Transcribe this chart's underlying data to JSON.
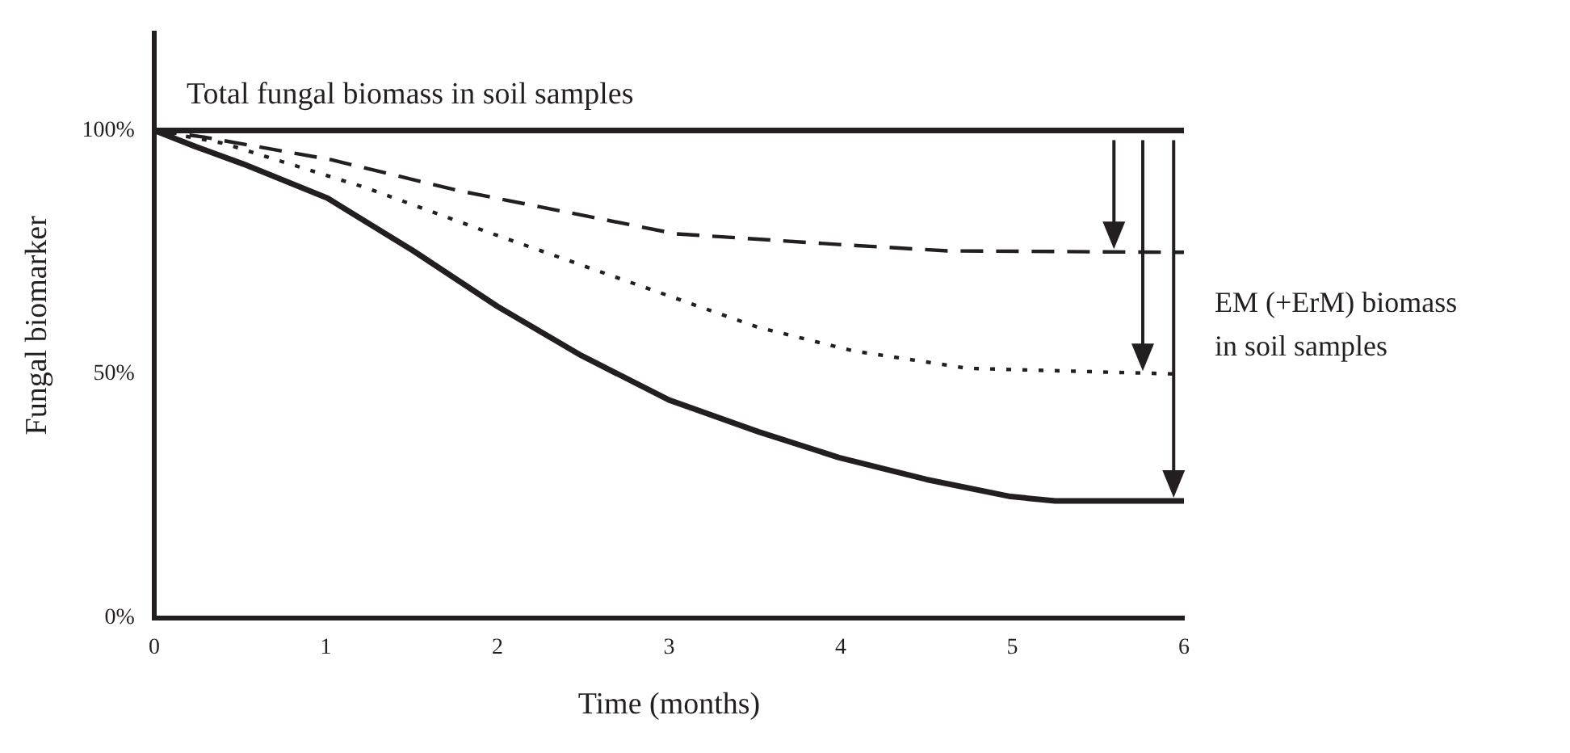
{
  "chart_data": {
    "type": "line",
    "xlabel": "Time (months)",
    "ylabel": "Fungal biomarker",
    "xlim": [
      0,
      6
    ],
    "xticks": [
      0,
      1,
      2,
      3,
      4,
      5,
      6
    ],
    "ylim": [
      0,
      120
    ],
    "yticks": [
      {
        "value": 0,
        "label": "0%"
      },
      {
        "value": 50,
        "label": "50%"
      },
      {
        "value": 100,
        "label": "100%"
      }
    ],
    "grid": false,
    "legend": false,
    "marker": "none",
    "series": [
      {
        "name": "Total fungal biomass in soil samples",
        "color": "#231f20",
        "line_style": "solid",
        "x": [
          0,
          6
        ],
        "values": [
          100,
          100
        ]
      },
      {
        "color": "#231f20",
        "line_style": "dashed",
        "x": [
          0,
          0.28,
          1.03,
          1.78,
          3.04,
          3.99,
          4.62,
          6
        ],
        "values": [
          100,
          98.7,
          94,
          87.6,
          78.8,
          76.6,
          75.3,
          75
        ]
      },
      {
        "color": "#231f20",
        "line_style": "dotted",
        "x": [
          0,
          0.4,
          1.23,
          1.94,
          2.73,
          3.52,
          4.07,
          4.74,
          6
        ],
        "values": [
          100,
          97.4,
          88.3,
          79.2,
          69.4,
          59.6,
          54.8,
          51.2,
          50
        ]
      },
      {
        "color": "#231f20",
        "line_style": "solid",
        "x": [
          0,
          0.24,
          0.52,
          1.01,
          1.51,
          2,
          2.49,
          3,
          3.52,
          3.99,
          4.5,
          4.99,
          5.25,
          6
        ],
        "values": [
          100,
          96.7,
          93.1,
          86.1,
          75.3,
          63.9,
          53.8,
          44.7,
          38.2,
          32.9,
          28.4,
          24.9,
          24,
          24
        ]
      }
    ],
    "annotations": [
      "EM (+ErM) biomass in soil samples"
    ]
  }
}
